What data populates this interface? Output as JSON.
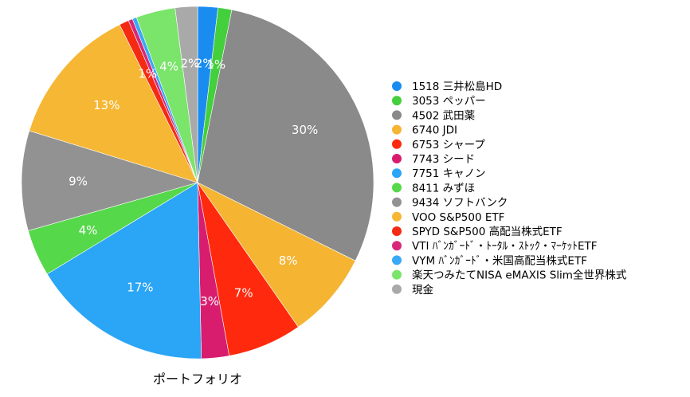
{
  "chart_data": {
    "type": "pie",
    "title": "ポートフォリオ",
    "legend_position": "right",
    "categories": [
      "1518 三井松島HD",
      "3053 ペッパー",
      "4502 武田薬",
      "6740 JDI",
      "6753 シャープ",
      "7743 シード",
      "7751 キャノン",
      "8411 みずほ",
      "9434 ソフトバンク",
      "VOO S&P500 ETF",
      "SPYD S&P500 高配当株式ETF",
      "VTI ﾊﾞﾝｶﾞｰﾄﾞ・ﾄｰﾀﾙ・ｽﾄｯｸ・ﾏｰｹｯﾄETF",
      "VYM ﾊﾞﾝｶﾞｰﾄﾞ・米国高配当株式ETF",
      "楽天つみたてNISA eMAXIS Slim全世界株式",
      "現金"
    ],
    "values": [
      1.9,
      1.3,
      30.0,
      8.2,
      7.0,
      2.6,
      17.1,
      4.4,
      9.4,
      13.3,
      0.9,
      0.4,
      0.4,
      3.7,
      2.1
    ],
    "labels": [
      "2%",
      "1%",
      "30%",
      "8%",
      "7%",
      "3%",
      "17%",
      "4%",
      "9%",
      "13%",
      "1%",
      "",
      "",
      "4%",
      "2%"
    ],
    "colors": [
      "#1a8cf0",
      "#44cf3c",
      "#8a8a8a",
      "#f5b432",
      "#ff2a0d",
      "#d81d6f",
      "#2ba5f5",
      "#55d84a",
      "#929292",
      "#f5b734",
      "#f52a12",
      "#d8277a",
      "#3aa9f5",
      "#7be56b",
      "#a9a9a9"
    ]
  }
}
